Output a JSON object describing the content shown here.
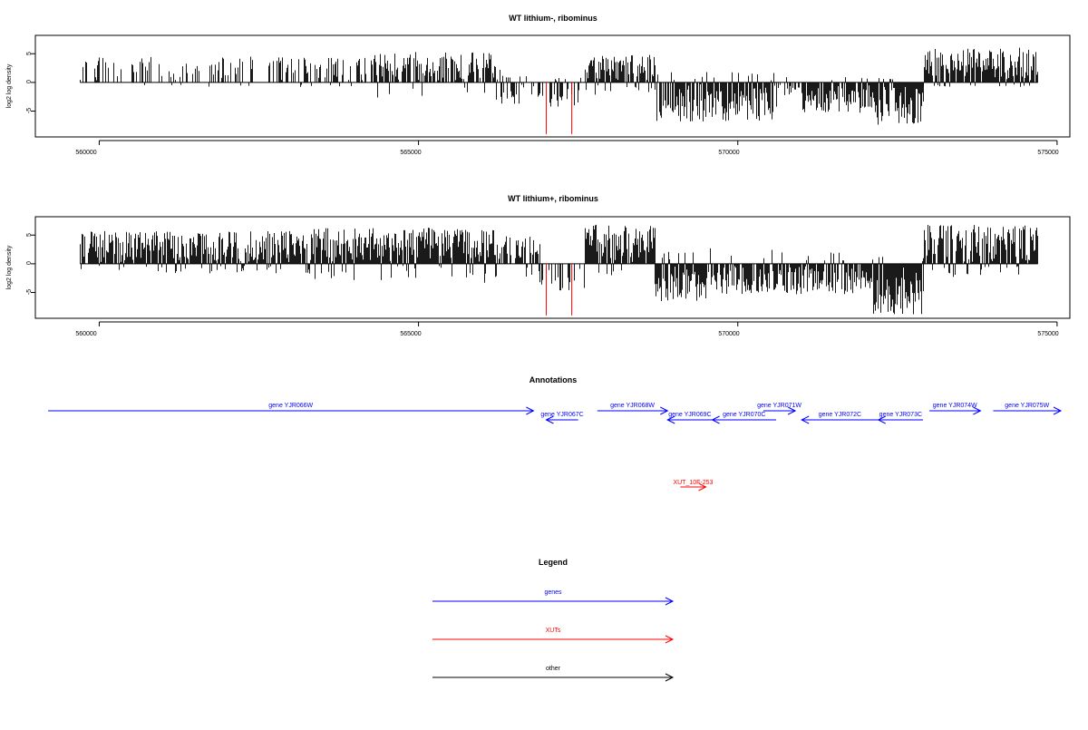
{
  "chart_data": [
    {
      "type": "bar",
      "title": "WT lithium-, ribominus",
      "ylabel": "log2 log density",
      "xlim": [
        559000,
        575200
      ],
      "ylim": [
        -9.5,
        8.2
      ],
      "xticks": [
        560000,
        565000,
        570000,
        575000
      ],
      "xtick_labels": [
        "560000",
        "565000",
        "570000",
        "575000"
      ],
      "yticks": [
        -5,
        0,
        5
      ],
      "ytick_labels": [
        "-5",
        "0",
        "5"
      ],
      "grid": false,
      "profile": {
        "x_start": 559700,
        "x_end": 574700,
        "segments": [
          {
            "from": 559700,
            "to": 563100,
            "pos_max": 4.2,
            "neg_max": 0.5,
            "density": 0.35
          },
          {
            "from": 563100,
            "to": 564300,
            "pos_max": 4.0,
            "neg_max": 0.5,
            "density": 0.6
          },
          {
            "from": 564300,
            "to": 566300,
            "pos_max": 5.0,
            "neg_max": 3.0,
            "density": 0.8
          },
          {
            "from": 566300,
            "to": 566900,
            "pos_max": 1.5,
            "neg_max": 3.5,
            "density": 0.4
          },
          {
            "from": 566900,
            "to": 567600,
            "pos_max": 0.5,
            "neg_max": 5.0,
            "density": 0.4
          },
          {
            "from": 567600,
            "to": 568700,
            "pos_max": 4.5,
            "neg_max": 2.0,
            "density": 0.9
          },
          {
            "from": 568700,
            "to": 570600,
            "pos_max": 1.5,
            "neg_max": 6.5,
            "density": 0.9
          },
          {
            "from": 570600,
            "to": 571000,
            "pos_max": 1.0,
            "neg_max": 2.0,
            "density": 0.3
          },
          {
            "from": 571000,
            "to": 572100,
            "pos_max": 1.0,
            "neg_max": 5.0,
            "density": 0.85
          },
          {
            "from": 572100,
            "to": 572900,
            "pos_max": 0.8,
            "neg_max": 7.2,
            "density": 1.0
          },
          {
            "from": 572900,
            "to": 574700,
            "pos_max": 5.8,
            "neg_max": 0.5,
            "density": 0.95
          }
        ],
        "highlights": [
          {
            "x": 567000,
            "y": -9.0
          },
          {
            "x": 567400,
            "y": -9.0
          }
        ]
      }
    },
    {
      "type": "bar",
      "title": "WT lithium+, ribominus",
      "ylabel": "log2 log density",
      "xlim": [
        559000,
        575200
      ],
      "ylim": [
        -9.5,
        8.2
      ],
      "xticks": [
        560000,
        565000,
        570000,
        575000
      ],
      "xtick_labels": [
        "560000",
        "565000",
        "570000",
        "575000"
      ],
      "yticks": [
        -5,
        0,
        5
      ],
      "ytick_labels": [
        "-5",
        "0",
        "5"
      ],
      "grid": false,
      "profile": {
        "x_start": 559700,
        "x_end": 574700,
        "segments": [
          {
            "from": 559700,
            "to": 563300,
            "pos_max": 5.5,
            "neg_max": 1.5,
            "density": 0.95
          },
          {
            "from": 563300,
            "to": 566200,
            "pos_max": 6.0,
            "neg_max": 3.0,
            "density": 1.0
          },
          {
            "from": 566200,
            "to": 566900,
            "pos_max": 4.5,
            "neg_max": 2.5,
            "density": 0.9
          },
          {
            "from": 566900,
            "to": 567600,
            "pos_max": 0.5,
            "neg_max": 4.5,
            "density": 0.35
          },
          {
            "from": 567600,
            "to": 568700,
            "pos_max": 6.5,
            "neg_max": 2.0,
            "density": 0.95
          },
          {
            "from": 568700,
            "to": 569500,
            "pos_max": 2.0,
            "neg_max": 6.5,
            "density": 1.0
          },
          {
            "from": 569500,
            "to": 572100,
            "pos_max": 2.5,
            "neg_max": 5.0,
            "density": 0.85
          },
          {
            "from": 572100,
            "to": 572900,
            "pos_max": 1.0,
            "neg_max": 8.5,
            "density": 1.0
          },
          {
            "from": 572900,
            "to": 574700,
            "pos_max": 6.5,
            "neg_max": 2.0,
            "density": 0.95
          }
        ],
        "highlights": [
          {
            "x": 567000,
            "y": -9.0
          },
          {
            "x": 567400,
            "y": -9.0
          }
        ]
      }
    }
  ],
  "annotations": {
    "title": "Annotations",
    "genes": [
      {
        "label": "gene YJR066W",
        "x_start": 559200,
        "x_end": 566800,
        "dir": "+",
        "row": 0
      },
      {
        "label": "gene YJR067C",
        "x_start": 567000,
        "x_end": 567500,
        "dir": "-",
        "row": 1
      },
      {
        "label": "gene YJR068W",
        "x_start": 567800,
        "x_end": 568900,
        "dir": "+",
        "row": 0
      },
      {
        "label": "gene YJR069C",
        "x_start": 568900,
        "x_end": 569600,
        "dir": "-",
        "row": 1
      },
      {
        "label": "gene YJR070C",
        "x_start": 569600,
        "x_end": 570600,
        "dir": "-",
        "row": 1
      },
      {
        "label": "gene YJR071W",
        "x_start": 570400,
        "x_end": 570900,
        "dir": "+",
        "row": 0
      },
      {
        "label": "gene YJR072C",
        "x_start": 571000,
        "x_end": 572200,
        "dir": "-",
        "row": 1
      },
      {
        "label": "gene YJR073C",
        "x_start": 572200,
        "x_end": 572900,
        "dir": "-",
        "row": 1
      },
      {
        "label": "gene YJR074W",
        "x_start": 573000,
        "x_end": 573800,
        "dir": "+",
        "row": 0
      },
      {
        "label": "gene YJR075W",
        "x_start": 574000,
        "x_end": 575200,
        "dir": "+",
        "row": 0
      }
    ],
    "xuts": [
      {
        "label": "XUT_10F-253",
        "x_start": 569100,
        "x_end": 569500,
        "dir": "+"
      }
    ]
  },
  "legend": {
    "title": "Legend",
    "entries": [
      {
        "label": "genes",
        "color": "#0000ff"
      },
      {
        "label": "XUTs",
        "color": "#ff0000"
      },
      {
        "label": "other",
        "color": "#000000"
      }
    ]
  },
  "colors": {
    "gene": "#0000ff",
    "xut": "#ff0000",
    "highlight": "#ff0000",
    "signal": "#000000"
  }
}
